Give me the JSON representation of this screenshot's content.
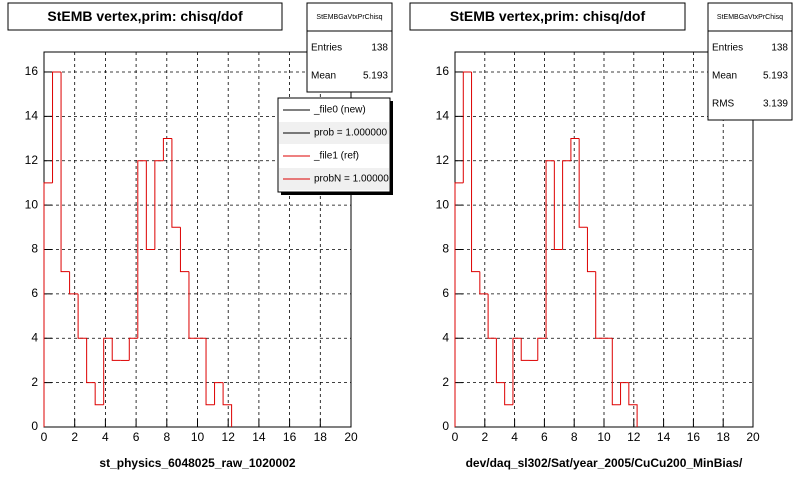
{
  "chart_data": [
    {
      "type": "histogram",
      "title": "StEMB  vertex,prim: chisq/dof",
      "xlabel": "st_physics_6048025_raw_1020002",
      "bins": [
        0,
        0.556,
        1.111,
        1.667,
        2.222,
        2.778,
        3.333,
        3.889,
        4.444,
        5,
        5.556,
        6.111,
        6.667,
        7.222,
        7.778,
        8.333,
        8.889,
        9.444,
        10,
        10.556,
        11.111,
        11.667,
        12.222
      ],
      "values": [
        11,
        16,
        7,
        6,
        4,
        2,
        1,
        4,
        3,
        3,
        4,
        12,
        8,
        12,
        13,
        9,
        7,
        4,
        4,
        1,
        2,
        1
      ],
      "color": "#dd0000",
      "xlim": [
        0,
        20
      ],
      "ylim": [
        0,
        16.9
      ],
      "xticks": [
        0,
        2,
        4,
        6,
        8,
        10,
        12,
        14,
        16,
        18,
        20
      ],
      "yticks": [
        0,
        2,
        4,
        6,
        8,
        10,
        12,
        14,
        16
      ],
      "grid": true,
      "stats": {
        "title": "StEMBGaVtxPrChisq",
        "rows": [
          {
            "label": "Entries",
            "value": 138
          },
          {
            "label": "Mean",
            "value": 5.193
          }
        ]
      },
      "legend": [
        {
          "label": "_file0 (new)",
          "color": "#000000"
        },
        {
          "label": "prob = 1.000000",
          "color": "#000000"
        },
        {
          "label": "_file1 (ref)",
          "color": "#dd0000"
        },
        {
          "label": "probN = 1.00000",
          "color": "#dd0000"
        }
      ]
    },
    {
      "type": "histogram",
      "title": "StEMB  vertex,prim: chisq/dof",
      "xlabel": "dev/daq_sl302/Sat/year_2005/CuCu200_MinBias/",
      "bins": [
        0,
        0.556,
        1.111,
        1.667,
        2.222,
        2.778,
        3.333,
        3.889,
        4.444,
        5,
        5.556,
        6.111,
        6.667,
        7.222,
        7.778,
        8.333,
        8.889,
        9.444,
        10,
        10.556,
        11.111,
        11.667,
        12.222
      ],
      "values": [
        11,
        16,
        7,
        6,
        4,
        2,
        1,
        4,
        3,
        3,
        4,
        12,
        8,
        12,
        13,
        9,
        7,
        4,
        4,
        1,
        2,
        1
      ],
      "color": "#dd0000",
      "xlim": [
        0,
        20
      ],
      "ylim": [
        0,
        16.9
      ],
      "xticks": [
        0,
        2,
        4,
        6,
        8,
        10,
        12,
        14,
        16,
        18,
        20
      ],
      "yticks": [
        0,
        2,
        4,
        6,
        8,
        10,
        12,
        14,
        16
      ],
      "grid": true,
      "stats": {
        "title": "StEMBGaVtxPrChisq",
        "rows": [
          {
            "label": "Entries",
            "value": 138
          },
          {
            "label": "Mean",
            "value": 5.193
          },
          {
            "label": "RMS",
            "value": 3.139
          }
        ]
      }
    }
  ]
}
